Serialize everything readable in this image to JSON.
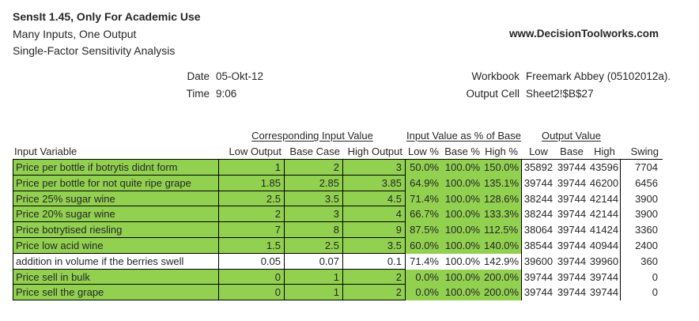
{
  "header": {
    "app_title": "SensIt 1.45, Only For Academic Use",
    "subtitle1": "Many Inputs, One Output",
    "subtitle2": "Single-Factor Sensitivity Analysis",
    "website": "www.DecisionToolworks.com"
  },
  "meta": {
    "date_label": "Date",
    "date_value": "05-Okt-12",
    "time_label": "Time",
    "time_value": "9:06",
    "workbook_label": "Workbook",
    "workbook_value": "Freemark Abbey (05102012a).",
    "output_cell_label": "Output Cell",
    "output_cell_value": "Sheet2!$B$27"
  },
  "colors": {
    "highlight_green": "#92D050"
  },
  "table": {
    "group_headers": [
      "Corresponding Input Value",
      "Input Value as % of Base",
      "Output Value"
    ],
    "column_headers": [
      "Input Variable",
      "Low Output",
      "Base Case",
      "High Output",
      "Low %",
      "Base %",
      "High %",
      "Low",
      "Base",
      "High",
      "Swing"
    ],
    "rows": [
      {
        "name": "Price per bottle if botrytis didnt form",
        "low_output": "1",
        "base_case": "2",
        "high_output": "3",
        "low_pct": "50.0%",
        "base_pct": "100.0%",
        "high_pct": "150.0%",
        "low": "35892",
        "base": "39744",
        "high": "43596",
        "swing": "7704",
        "highlighted": true
      },
      {
        "name": "Price per bottle for not quite ripe grape",
        "low_output": "1.85",
        "base_case": "2.85",
        "high_output": "3.85",
        "low_pct": "64.9%",
        "base_pct": "100.0%",
        "high_pct": "135.1%",
        "low": "39744",
        "base": "39744",
        "high": "46200",
        "swing": "6456",
        "highlighted": true
      },
      {
        "name": "Price 25% sugar wine",
        "low_output": "2.5",
        "base_case": "3.5",
        "high_output": "4.5",
        "low_pct": "71.4%",
        "base_pct": "100.0%",
        "high_pct": "128.6%",
        "low": "38244",
        "base": "39744",
        "high": "42144",
        "swing": "3900",
        "highlighted": true
      },
      {
        "name": "Price 20% sugar wine",
        "low_output": "2",
        "base_case": "3",
        "high_output": "4",
        "low_pct": "66.7%",
        "base_pct": "100.0%",
        "high_pct": "133.3%",
        "low": "38244",
        "base": "39744",
        "high": "42144",
        "swing": "3900",
        "highlighted": true
      },
      {
        "name": "Price botrytised riesling",
        "low_output": "7",
        "base_case": "8",
        "high_output": "9",
        "low_pct": "87.5%",
        "base_pct": "100.0%",
        "high_pct": "112.5%",
        "low": "38064",
        "base": "39744",
        "high": "41424",
        "swing": "3360",
        "highlighted": true
      },
      {
        "name": "Price low acid wine",
        "low_output": "1.5",
        "base_case": "2.5",
        "high_output": "3.5",
        "low_pct": "60.0%",
        "base_pct": "100.0%",
        "high_pct": "140.0%",
        "low": "38544",
        "base": "39744",
        "high": "40944",
        "swing": "2400",
        "highlighted": true
      },
      {
        "name": "addition in volume if the berries swell",
        "low_output": "0.05",
        "base_case": "0.07",
        "high_output": "0.1",
        "low_pct": "71.4%",
        "base_pct": "100.0%",
        "high_pct": "142.9%",
        "low": "39600",
        "base": "39744",
        "high": "39960",
        "swing": "360",
        "highlighted": false
      },
      {
        "name": "Price sell in bulk",
        "low_output": "0",
        "base_case": "1",
        "high_output": "2",
        "low_pct": "0.0%",
        "base_pct": "100.0%",
        "high_pct": "200.0%",
        "low": "39744",
        "base": "39744",
        "high": "39744",
        "swing": "0",
        "highlighted": true
      },
      {
        "name": "Price sell the grape",
        "low_output": "0",
        "base_case": "1",
        "high_output": "2",
        "low_pct": "0.0%",
        "base_pct": "100.0%",
        "high_pct": "200.0%",
        "low": "39744",
        "base": "39744",
        "high": "39744",
        "swing": "0",
        "highlighted": true
      }
    ]
  }
}
